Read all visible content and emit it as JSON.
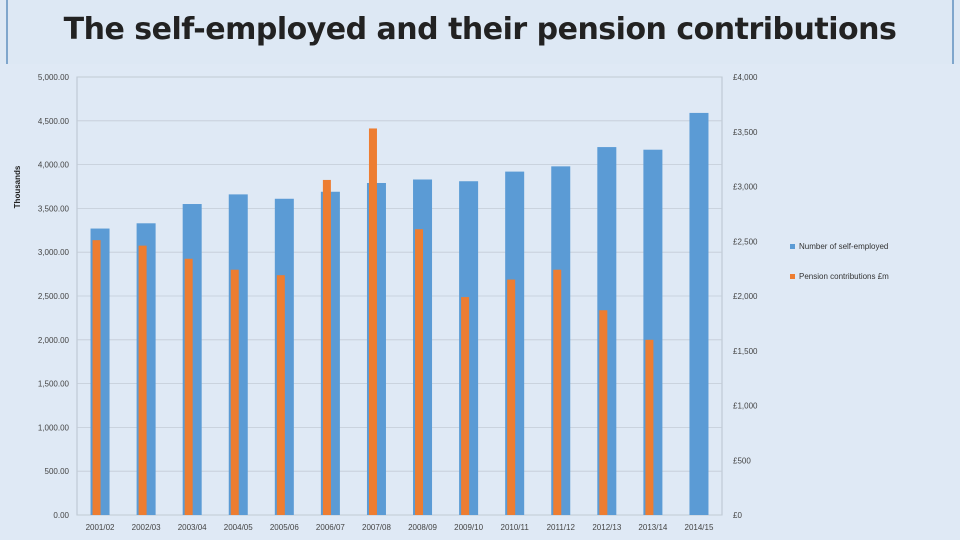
{
  "title": "The self-employed and their pension contributions",
  "chart_data": {
    "type": "bar",
    "categories": [
      "2001/02",
      "2002/03",
      "2003/04",
      "2004/05",
      "2005/06",
      "2006/07",
      "2007/08",
      "2008/09",
      "2009/10",
      "2010/11",
      "2011/12",
      "2012/13",
      "2013/14",
      "2014/15"
    ],
    "series": [
      {
        "name": "Number of self-employed",
        "axis": "left",
        "color": "#5b9bd5",
        "values": [
          3270,
          3330,
          3550,
          3660,
          3610,
          3690,
          3790,
          3830,
          3810,
          3920,
          3980,
          4200,
          4170,
          4590
        ]
      },
      {
        "name": "Pension contributions £m",
        "axis": "right",
        "color": "#ed7d31",
        "values": [
          2510,
          2460,
          2340,
          2240,
          2190,
          3060,
          3530,
          2610,
          1990,
          2150,
          2240,
          1870,
          1600,
          null
        ]
      }
    ],
    "ylabel": "Thousands",
    "ylim": [
      0,
      5000
    ],
    "y2lim": [
      0,
      4000
    ],
    "yticks": [
      "0.00",
      "500.00",
      "1,000.00",
      "1,500.00",
      "2,000.00",
      "2,500.00",
      "3,000.00",
      "3,500.00",
      "4,000.00",
      "4,500.00",
      "5,000.00"
    ],
    "y2ticks": [
      "£0",
      "£500",
      "£1,000",
      "£1,500",
      "£2,000",
      "£2,500",
      "£3,000",
      "£3,500",
      "£4,000"
    ],
    "legend_position": "right",
    "grid": true
  }
}
